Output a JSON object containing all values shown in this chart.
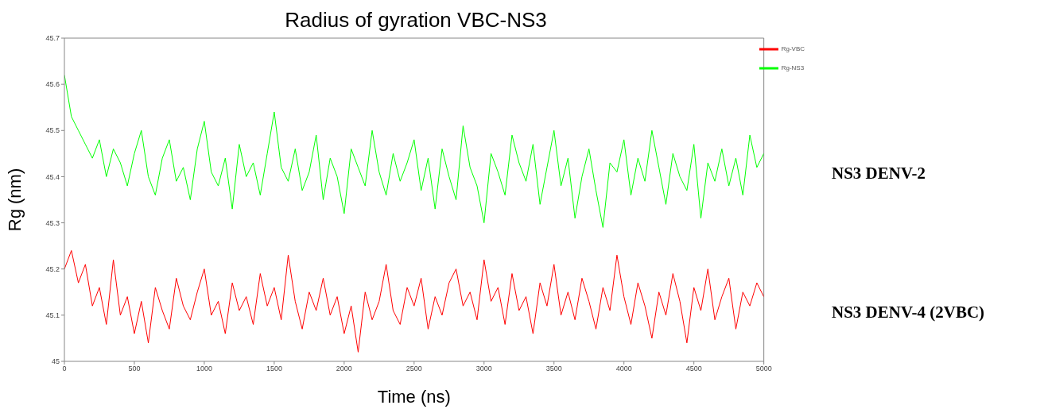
{
  "chart_data": {
    "type": "line",
    "title": "Radius of gyration VBC-NS3",
    "xlabel": "Time (ns)",
    "ylabel": "Rg (nm)",
    "x": [
      0,
      50,
      100,
      150,
      200,
      250,
      300,
      350,
      400,
      450,
      500,
      550,
      600,
      650,
      700,
      750,
      800,
      850,
      900,
      950,
      1000,
      1050,
      1100,
      1150,
      1200,
      1250,
      1300,
      1350,
      1400,
      1450,
      1500,
      1550,
      1600,
      1650,
      1700,
      1750,
      1800,
      1850,
      1900,
      1950,
      2000,
      2050,
      2100,
      2150,
      2200,
      2250,
      2300,
      2350,
      2400,
      2450,
      2500,
      2550,
      2600,
      2650,
      2700,
      2750,
      2800,
      2850,
      2900,
      2950,
      3000,
      3050,
      3100,
      3150,
      3200,
      3250,
      3300,
      3350,
      3400,
      3450,
      3500,
      3550,
      3600,
      3650,
      3700,
      3750,
      3800,
      3850,
      3900,
      3950,
      4000,
      4050,
      4100,
      4150,
      4200,
      4250,
      4300,
      4350,
      4400,
      4450,
      4500,
      4550,
      4600,
      4650,
      4700,
      4750,
      4800,
      4850,
      4900,
      4950,
      5000
    ],
    "series": [
      {
        "name": "Rg-VBC",
        "color": "#ff0000",
        "values": [
          45.2,
          45.24,
          45.17,
          45.21,
          45.12,
          45.16,
          45.08,
          45.22,
          45.1,
          45.14,
          45.06,
          45.13,
          45.04,
          45.16,
          45.11,
          45.07,
          45.18,
          45.12,
          45.09,
          45.15,
          45.2,
          45.1,
          45.13,
          45.06,
          45.17,
          45.11,
          45.14,
          45.08,
          45.19,
          45.12,
          45.16,
          45.09,
          45.23,
          45.13,
          45.07,
          45.15,
          45.11,
          45.18,
          45.1,
          45.14,
          45.06,
          45.12,
          45.02,
          45.15,
          45.09,
          45.13,
          45.21,
          45.11,
          45.08,
          45.16,
          45.12,
          45.18,
          45.07,
          45.14,
          45.1,
          45.17,
          45.2,
          45.12,
          45.15,
          45.09,
          45.22,
          45.13,
          45.16,
          45.08,
          45.19,
          45.11,
          45.14,
          45.06,
          45.17,
          45.12,
          45.21,
          45.1,
          45.15,
          45.09,
          45.18,
          45.13,
          45.07,
          45.16,
          45.11,
          45.23,
          45.14,
          45.08,
          45.17,
          45.12,
          45.05,
          45.15,
          45.1,
          45.19,
          45.13,
          45.04,
          45.16,
          45.11,
          45.2,
          45.09,
          45.14,
          45.18,
          45.07,
          45.15,
          45.12,
          45.17,
          45.14
        ]
      },
      {
        "name": "Rg-NS3",
        "color": "#00ff00",
        "values": [
          45.62,
          45.53,
          45.5,
          45.47,
          45.44,
          45.48,
          45.4,
          45.46,
          45.43,
          45.38,
          45.45,
          45.5,
          45.4,
          45.36,
          45.44,
          45.48,
          45.39,
          45.42,
          45.35,
          45.46,
          45.52,
          45.41,
          45.38,
          45.44,
          45.33,
          45.47,
          45.4,
          45.43,
          45.36,
          45.45,
          45.54,
          45.42,
          45.39,
          45.46,
          45.37,
          45.41,
          45.49,
          45.35,
          45.44,
          45.4,
          45.32,
          45.46,
          45.42,
          45.38,
          45.5,
          45.41,
          45.36,
          45.45,
          45.39,
          45.43,
          45.48,
          45.37,
          45.44,
          45.33,
          45.46,
          45.4,
          45.35,
          45.51,
          45.42,
          45.38,
          45.3,
          45.45,
          45.41,
          45.36,
          45.49,
          45.43,
          45.39,
          45.47,
          45.34,
          45.42,
          45.5,
          45.38,
          45.44,
          45.31,
          45.4,
          45.46,
          45.37,
          45.29,
          45.43,
          45.41,
          45.48,
          45.36,
          45.44,
          45.39,
          45.5,
          45.42,
          45.34,
          45.45,
          45.4,
          45.37,
          45.47,
          45.31,
          45.43,
          45.39,
          45.46,
          45.38,
          45.44,
          45.36,
          45.49,
          45.42,
          45.45
        ]
      }
    ],
    "xlim": [
      0,
      5000
    ],
    "xticks": [
      0,
      500,
      1000,
      1500,
      2000,
      2500,
      3000,
      3500,
      4000,
      4500,
      5000
    ],
    "ylim": [
      45,
      45.7
    ],
    "yticks": [
      45,
      45.1,
      45.2,
      45.3,
      45.4,
      45.5,
      45.6,
      45.7
    ],
    "legend": "top right",
    "grid": false,
    "marker": "none",
    "line_style": "solid",
    "annotations": [
      "NS3 DENV-2",
      "NS3 DENV-4 (2VBC)"
    ]
  }
}
